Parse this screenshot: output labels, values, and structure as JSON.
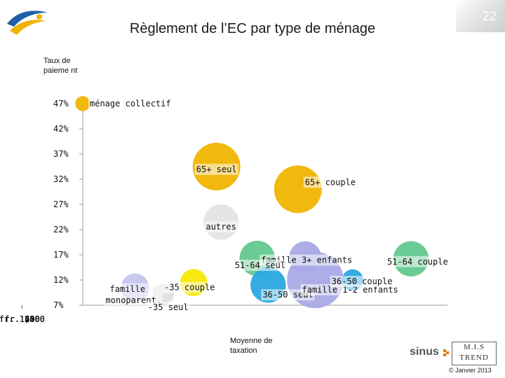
{
  "page": {
    "title": "Règlement de l’EC par type de ménage",
    "page_number": "22",
    "copyright": "© Janvier 2013",
    "sinus_logo": "sinus",
    "mis_logo_line1": "M.I.S",
    "mis_logo_line2": "TREND"
  },
  "chart_data": {
    "type": "scatter",
    "title": "Règlement de l’EC par type de ménage",
    "xlabel": "Moyenne de taxation",
    "ylabel": "Taux de paiement",
    "ylabel_text": "Taux de paieme nt",
    "xlim": [
      200,
      1400
    ],
    "ylim": [
      7,
      47
    ],
    "x_ticks": [
      "fr. 200",
      "fr. 400",
      "fr. 600",
      "fr. 800",
      "fr. 1,000",
      "fr. 1,200",
      "fr. 1,400"
    ],
    "y_ticks": [
      "47%",
      "42%",
      "37%",
      "32%",
      "27%",
      "22%",
      "17%",
      "12%",
      "7%"
    ],
    "bubble_size_shown": true,
    "points": [
      {
        "label": "ménage collectif",
        "x": 200,
        "y": 47,
        "size": 0.1,
        "color": "#f0b400"
      },
      {
        "label": "65+ seul",
        "x": 640,
        "y": 34.5,
        "size": 1.0,
        "color": "#f0b400"
      },
      {
        "label": "65+ couple",
        "x": 908,
        "y": 30,
        "size": 1.0,
        "color": "#f0b400"
      },
      {
        "label": "autres",
        "x": 655,
        "y": 23.5,
        "size": 0.55,
        "color": "#e4e4e4"
      },
      {
        "label": "famille 3+ enfants",
        "x": 932,
        "y": 16.5,
        "size": 0.45,
        "color": "#a9a9e6"
      },
      {
        "label": "51-64 seul",
        "x": 774,
        "y": 16.3,
        "size": 0.55,
        "color": "#62c98e"
      },
      {
        "label": "51-64 couple",
        "x": 1280,
        "y": 16.2,
        "size": 0.55,
        "color": "#62c98e"
      },
      {
        "label": "famille monoparent.",
        "x": 372,
        "y": 10.5,
        "size": 0.35,
        "color": "#c6c6ee"
      },
      {
        "label": "-35 couple",
        "x": 565,
        "y": 11.5,
        "size": 0.32,
        "color": "#f5e800"
      },
      {
        "label": "36-50 seul",
        "x": 810,
        "y": 11,
        "size": 0.55,
        "color": "#29a8e0"
      },
      {
        "label": "famille 1-2 enfants",
        "x": 965,
        "y": 12,
        "size": 1.4,
        "color": "#a9a9e6"
      },
      {
        "label": "36-50 couple",
        "x": 1088,
        "y": 12,
        "size": 0.2,
        "color": "#29a8e0"
      },
      {
        "label": "-35 seul",
        "x": 465,
        "y": 9.2,
        "size": 0.2,
        "color": "#e0e0e0"
      }
    ]
  }
}
